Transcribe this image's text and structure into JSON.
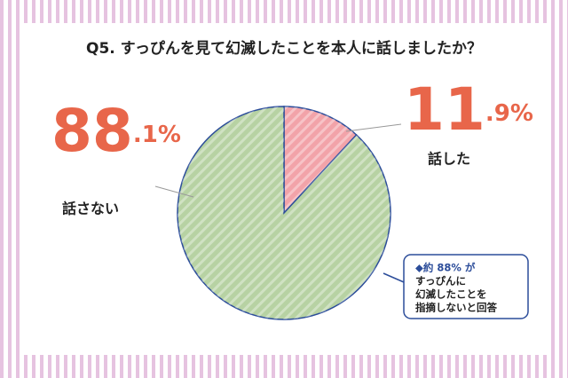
{
  "chart_data": {
    "type": "pie",
    "title": "Q5. すっぴんを見て幻滅したことを本人に話しましたか？",
    "categories": [
      "話した",
      "話さない"
    ],
    "values": [
      11.9,
      88.1
    ],
    "value_labels": [
      "11.9%",
      "88.1%"
    ],
    "colors": [
      "#f2a3a9",
      "#b7d2a3"
    ],
    "annotation": [
      "◆約 88% が",
      "すっぴんに",
      "幻滅したことを",
      "指摘しないと回答"
    ]
  }
}
